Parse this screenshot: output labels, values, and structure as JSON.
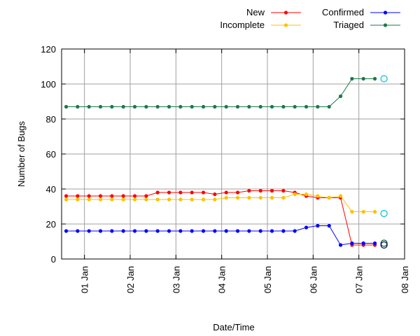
{
  "chart_data": {
    "type": "line",
    "title": "",
    "xlabel": "Date/Time",
    "ylabel": "Number of Bugs",
    "ylim": [
      0,
      120
    ],
    "yticks": [
      0,
      20,
      40,
      60,
      80,
      100,
      120
    ],
    "xlim": [
      0.5,
      8.0
    ],
    "xticks": [
      {
        "x": 1,
        "label": "01 Jan"
      },
      {
        "x": 2,
        "label": "02 Jan"
      },
      {
        "x": 3,
        "label": "03 Jan"
      },
      {
        "x": 4,
        "label": "04 Jan"
      },
      {
        "x": 5,
        "label": "05 Jan"
      },
      {
        "x": 6,
        "label": "06 Jan"
      },
      {
        "x": 7,
        "label": "07 Jan"
      },
      {
        "x": 8,
        "label": "08 Jan"
      }
    ],
    "grid": true,
    "legend_position": "top-right",
    "x": [
      0.6,
      0.85,
      1.1,
      1.35,
      1.6,
      1.85,
      2.1,
      2.35,
      2.6,
      2.85,
      3.1,
      3.35,
      3.6,
      3.85,
      4.1,
      4.35,
      4.6,
      4.85,
      5.1,
      5.35,
      5.6,
      5.85,
      6.1,
      6.35,
      6.6,
      6.85,
      7.1,
      7.35
    ],
    "series": [
      {
        "name": "New",
        "color": "#ff0000",
        "values": [
          36,
          36,
          36,
          36,
          36,
          36,
          36,
          36,
          38,
          38,
          38,
          38,
          38,
          37,
          38,
          38,
          39,
          39,
          39,
          39,
          38,
          36,
          35,
          35,
          35,
          8,
          8,
          8
        ],
        "final_marker": {
          "x": 7.55,
          "y": 9
        }
      },
      {
        "name": "Incomplete",
        "color": "#ffc000",
        "values": [
          34,
          34,
          34,
          34,
          34,
          34,
          34,
          34,
          34,
          34,
          34,
          34,
          34,
          34,
          35,
          35,
          35,
          35,
          35,
          35,
          37,
          37,
          36,
          35,
          36,
          27,
          27,
          27
        ],
        "final_marker": {
          "x": 7.55,
          "y": 26
        }
      },
      {
        "name": "Confirmed",
        "color": "#0000ff",
        "values": [
          16,
          16,
          16,
          16,
          16,
          16,
          16,
          16,
          16,
          16,
          16,
          16,
          16,
          16,
          16,
          16,
          16,
          16,
          16,
          16,
          16,
          18,
          19,
          19,
          8,
          9,
          9,
          9
        ],
        "final_marker": {
          "x": 7.55,
          "y": 8
        }
      },
      {
        "name": "Triaged",
        "color": "#1a7a4a",
        "values": [
          87,
          87,
          87,
          87,
          87,
          87,
          87,
          87,
          87,
          87,
          87,
          87,
          87,
          87,
          87,
          87,
          87,
          87,
          87,
          87,
          87,
          87,
          87,
          87,
          93,
          103,
          103,
          103
        ],
        "final_marker": {
          "x": 7.55,
          "y": 103
        }
      }
    ]
  },
  "marker_colors": {
    "New": "#005030",
    "Incomplete": "#00c0d0",
    "Confirmed": "#000060",
    "Triaged": "#00c0d0"
  }
}
